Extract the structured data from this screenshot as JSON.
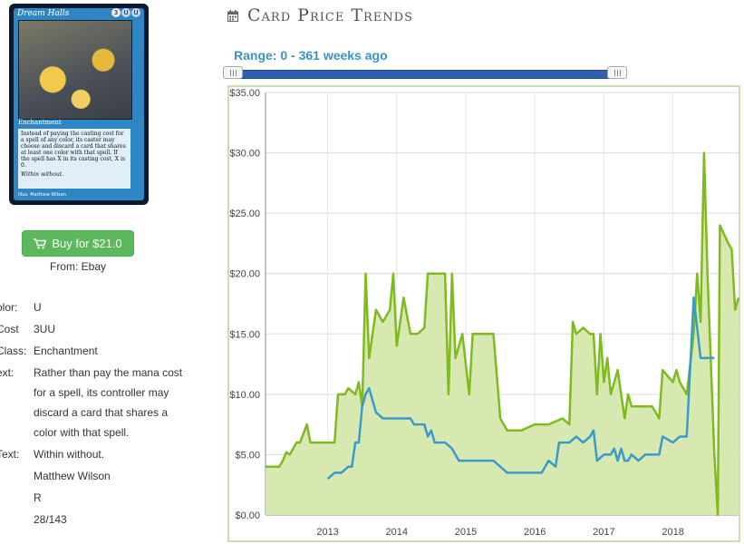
{
  "card": {
    "name": "Dream Halls",
    "mana_symbols": [
      "3",
      "U",
      "U"
    ],
    "type_line": "Enchantment",
    "oracle_text": "Instead of paying the casting cost for a spell of any color, its caster may choose and discard a card that shares at least one color with that spell. If the spell has X in its casting cost, X is 0.",
    "flavor": "Within without.",
    "artist_line": "Illus. Matthew Wilson"
  },
  "buy": {
    "label": "Buy for $21.0",
    "from": "From: Ebay"
  },
  "details": [
    {
      "label": "olor:",
      "value": "U"
    },
    {
      "label": "Cost",
      "value": "3UU"
    },
    {
      "label": " Class:",
      "value": "Enchantment"
    },
    {
      "label": "ext:",
      "value": "Rather than pay the mana cost for a spell, its controller may discard a card that shares a color with that spell."
    },
    {
      "label": "Text:",
      "value": "Within without."
    },
    {
      "label": "",
      "value": "Matthew Wilson"
    },
    {
      "label": "",
      "value": "R"
    },
    {
      "label": ":",
      "value": "28/143"
    }
  ],
  "page_title": "Card Price Trends",
  "range_text": "Range: 0 - 361 weeks ago",
  "slider": {
    "min_weeks": 0,
    "max_weeks": 361
  },
  "colors": {
    "paper_line": "#7fba1f",
    "paper_fill": "#d3e7a9",
    "foil_line": "#3a9bc9",
    "title_icon": "#666666",
    "range_text": "#3a93c4",
    "buy_button": "#5cb85c"
  },
  "chart_data": {
    "type": "line",
    "ylim": [
      0,
      35
    ],
    "xlim": [
      2012.1,
      2018.95
    ],
    "y_ticks": [
      "$0.00",
      "$5.00",
      "$10.00",
      "$15.00",
      "$20.00",
      "$25.00",
      "$30.00",
      "$35.00"
    ],
    "x_ticks": [
      "2013",
      "2014",
      "2015",
      "2016",
      "2017",
      "2018"
    ],
    "grid": true,
    "series": [
      {
        "style": "area",
        "points": [
          [
            2012.1,
            4.0
          ],
          [
            2012.3,
            4.0
          ],
          [
            2012.35,
            4.5
          ],
          [
            2012.4,
            5.2
          ],
          [
            2012.45,
            5.0
          ],
          [
            2012.5,
            5.5
          ],
          [
            2012.55,
            6.0
          ],
          [
            2012.6,
            6.0
          ],
          [
            2012.7,
            7.5
          ],
          [
            2012.75,
            6.0
          ],
          [
            2012.8,
            6.0
          ],
          [
            2013.0,
            6.0
          ],
          [
            2013.1,
            6.0
          ],
          [
            2013.15,
            10.0
          ],
          [
            2013.25,
            10.0
          ],
          [
            2013.3,
            10.5
          ],
          [
            2013.4,
            10.0
          ],
          [
            2013.45,
            11.0
          ],
          [
            2013.5,
            9.0
          ],
          [
            2013.55,
            20.0
          ],
          [
            2013.6,
            13.0
          ],
          [
            2013.7,
            17.0
          ],
          [
            2013.8,
            16.0
          ],
          [
            2013.9,
            17.0
          ],
          [
            2013.95,
            20.0
          ],
          [
            2014.0,
            14.0
          ],
          [
            2014.1,
            18.0
          ],
          [
            2014.2,
            15.0
          ],
          [
            2014.3,
            15.0
          ],
          [
            2014.4,
            15.5
          ],
          [
            2014.45,
            20.0
          ],
          [
            2014.55,
            20.0
          ],
          [
            2014.7,
            20.0
          ],
          [
            2014.75,
            10.0
          ],
          [
            2014.8,
            20.0
          ],
          [
            2014.85,
            13.0
          ],
          [
            2014.95,
            15.0
          ],
          [
            2015.05,
            10.0
          ],
          [
            2015.1,
            15.0
          ],
          [
            2015.3,
            15.0
          ],
          [
            2015.4,
            15.0
          ],
          [
            2015.5,
            8.0
          ],
          [
            2015.6,
            7.0
          ],
          [
            2015.8,
            7.0
          ],
          [
            2016.0,
            7.5
          ],
          [
            2016.2,
            7.5
          ],
          [
            2016.4,
            8.0
          ],
          [
            2016.5,
            7.5
          ],
          [
            2016.55,
            16.0
          ],
          [
            2016.6,
            15.0
          ],
          [
            2016.7,
            15.5
          ],
          [
            2016.8,
            15.0
          ],
          [
            2016.85,
            15.0
          ],
          [
            2016.9,
            10.0
          ],
          [
            2016.95,
            15.0
          ],
          [
            2017.0,
            11.0
          ],
          [
            2017.05,
            13.0
          ],
          [
            2017.1,
            10.0
          ],
          [
            2017.2,
            12.0
          ],
          [
            2017.3,
            8.0
          ],
          [
            2017.35,
            10.0
          ],
          [
            2017.4,
            9.0
          ],
          [
            2017.5,
            9.0
          ],
          [
            2017.6,
            9.0
          ],
          [
            2017.7,
            9.0
          ],
          [
            2017.8,
            8.0
          ],
          [
            2017.85,
            12.0
          ],
          [
            2018.0,
            11.0
          ],
          [
            2018.05,
            12.0
          ],
          [
            2018.1,
            11.0
          ],
          [
            2018.2,
            10.0
          ],
          [
            2018.3,
            15.0
          ],
          [
            2018.35,
            20.0
          ],
          [
            2018.4,
            16.0
          ],
          [
            2018.45,
            30.0
          ],
          [
            2018.5,
            20.0
          ],
          [
            2018.6,
            5.0
          ],
          [
            2018.65,
            0.0
          ],
          [
            2018.68,
            24.0
          ],
          [
            2018.8,
            22.5
          ],
          [
            2018.85,
            22.0
          ],
          [
            2018.9,
            17.0
          ],
          [
            2018.95,
            18.0
          ]
        ]
      },
      {
        "style": "line",
        "points": [
          [
            2013.0,
            3.0
          ],
          [
            2013.1,
            3.5
          ],
          [
            2013.2,
            3.5
          ],
          [
            2013.3,
            4.0
          ],
          [
            2013.35,
            4.0
          ],
          [
            2013.4,
            6.0
          ],
          [
            2013.45,
            6.0
          ],
          [
            2013.5,
            9.0
          ],
          [
            2013.55,
            10.0
          ],
          [
            2013.6,
            10.5
          ],
          [
            2013.7,
            8.5
          ],
          [
            2013.8,
            8.0
          ],
          [
            2014.0,
            8.0
          ],
          [
            2014.2,
            8.0
          ],
          [
            2014.25,
            7.5
          ],
          [
            2014.4,
            7.5
          ],
          [
            2014.45,
            6.5
          ],
          [
            2014.5,
            7.0
          ],
          [
            2014.55,
            6.0
          ],
          [
            2014.7,
            6.0
          ],
          [
            2014.8,
            5.5
          ],
          [
            2014.9,
            4.5
          ],
          [
            2015.0,
            4.5
          ],
          [
            2015.1,
            4.5
          ],
          [
            2015.3,
            4.5
          ],
          [
            2015.4,
            4.5
          ],
          [
            2015.5,
            4.0
          ],
          [
            2015.6,
            3.5
          ],
          [
            2015.9,
            3.5
          ],
          [
            2016.0,
            3.5
          ],
          [
            2016.1,
            3.5
          ],
          [
            2016.2,
            4.5
          ],
          [
            2016.3,
            4.0
          ],
          [
            2016.35,
            6.0
          ],
          [
            2016.5,
            6.0
          ],
          [
            2016.6,
            6.5
          ],
          [
            2016.7,
            6.0
          ],
          [
            2016.8,
            6.5
          ],
          [
            2016.85,
            7.0
          ],
          [
            2016.9,
            4.5
          ],
          [
            2017.0,
            5.0
          ],
          [
            2017.1,
            5.0
          ],
          [
            2017.15,
            5.5
          ],
          [
            2017.2,
            4.5
          ],
          [
            2017.25,
            5.5
          ],
          [
            2017.3,
            4.5
          ],
          [
            2017.35,
            4.5
          ],
          [
            2017.4,
            5.0
          ],
          [
            2017.5,
            4.5
          ],
          [
            2017.6,
            5.0
          ],
          [
            2017.8,
            5.0
          ],
          [
            2017.85,
            6.5
          ],
          [
            2018.0,
            6.0
          ],
          [
            2018.1,
            6.5
          ],
          [
            2018.2,
            6.5
          ],
          [
            2018.3,
            18.0
          ],
          [
            2018.4,
            13.0
          ],
          [
            2018.5,
            13.0
          ],
          [
            2018.6,
            13.0
          ]
        ]
      }
    ]
  }
}
